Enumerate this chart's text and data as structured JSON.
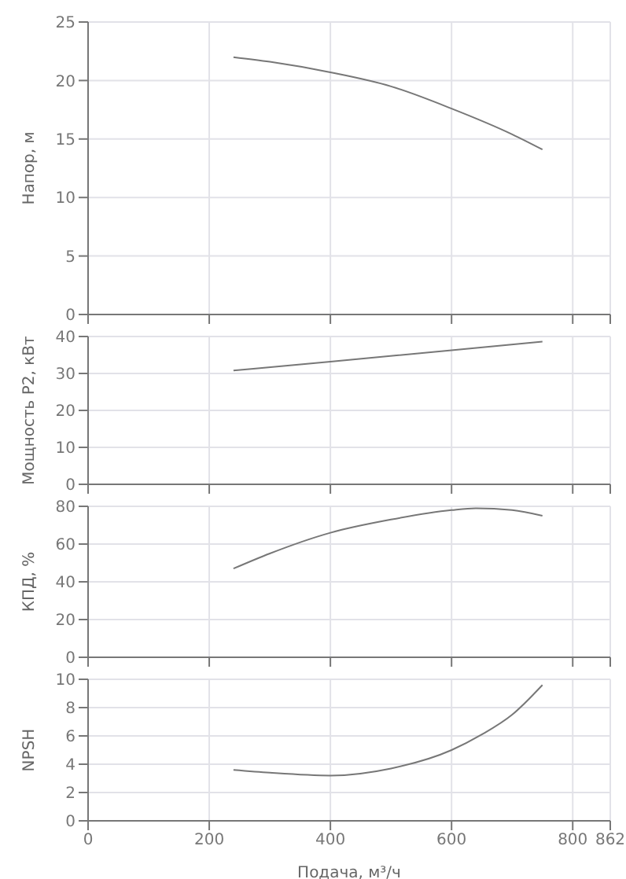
{
  "chart_data": [
    {
      "type": "line",
      "ylabel": "Напор, м",
      "x": [
        240,
        300,
        400,
        500,
        600,
        700,
        750
      ],
      "series": [
        {
          "color": "#777777",
          "values": [
            22,
            21.6,
            20.7,
            19.5,
            17.6,
            15.4,
            14.1
          ]
        }
      ],
      "xlim": [
        0,
        862
      ],
      "xticks": [
        0,
        200,
        400,
        600,
        800,
        862
      ],
      "ylim": [
        0,
        25
      ],
      "yticks": [
        0,
        5,
        10,
        15,
        20,
        25
      ],
      "grid": true,
      "tick_labels": "y",
      "marker": "none",
      "line_style": "solid"
    },
    {
      "type": "line",
      "ylabel": "Мощность P2, кВт",
      "x": [
        240,
        400,
        600,
        750
      ],
      "series": [
        {
          "color": "#777777",
          "values": [
            30.8,
            33.2,
            36.3,
            38.6
          ]
        }
      ],
      "xlim": [
        0,
        862
      ],
      "xticks": [
        0,
        200,
        400,
        600,
        800,
        862
      ],
      "ylim": [
        0,
        40
      ],
      "yticks": [
        0,
        10,
        20,
        30,
        40
      ],
      "grid": true,
      "tick_labels": "y",
      "marker": "none",
      "line_style": "solid"
    },
    {
      "type": "line",
      "ylabel": "КПД, %",
      "x": [
        240,
        300,
        400,
        500,
        600,
        640,
        700,
        750
      ],
      "series": [
        {
          "color": "#777777",
          "values": [
            47,
            55,
            66,
            73,
            78,
            79,
            78,
            75
          ]
        }
      ],
      "xlim": [
        0,
        862
      ],
      "xticks": [
        0,
        200,
        400,
        600,
        800,
        862
      ],
      "ylim": [
        0,
        80
      ],
      "yticks": [
        0,
        20,
        40,
        60,
        80
      ],
      "grid": true,
      "tick_labels": "y",
      "marker": "none",
      "line_style": "solid"
    },
    {
      "type": "line",
      "ylabel": "NPSH",
      "xlabel": "Подача, м³/ч",
      "x": [
        240,
        300,
        400,
        500,
        600,
        650,
        700,
        750
      ],
      "series": [
        {
          "color": "#777777",
          "values": [
            3.6,
            3.4,
            3.2,
            3.7,
            5.0,
            6.1,
            7.5,
            9.6
          ]
        }
      ],
      "xlim": [
        0,
        862
      ],
      "xticks": [
        0,
        200,
        400,
        600,
        800,
        862
      ],
      "ylim": [
        0,
        10
      ],
      "yticks": [
        0,
        2,
        4,
        6,
        8,
        10
      ],
      "grid": true,
      "marker": "none",
      "line_style": "solid"
    }
  ]
}
